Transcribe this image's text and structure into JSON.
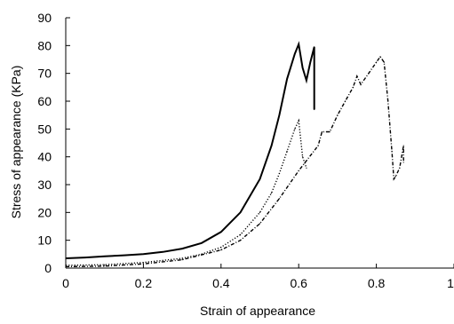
{
  "chart_data": {
    "type": "line",
    "title": "",
    "xlabel": "Strain of appearance",
    "ylabel": "Stress of appearance (KPa)",
    "xlim": [
      0,
      1
    ],
    "ylim": [
      0,
      90
    ],
    "xticks": [
      0,
      0.2,
      0.4,
      0.6,
      0.8,
      1
    ],
    "xtick_labels": [
      "0",
      "0.2",
      "0.4",
      "0.6",
      "0.8",
      "1"
    ],
    "yticks": [
      0,
      10,
      20,
      30,
      40,
      50,
      60,
      70,
      80,
      90
    ],
    "ytick_labels": [
      "0",
      "10",
      "20",
      "30",
      "40",
      "50",
      "60",
      "70",
      "80",
      "90"
    ],
    "grid": false,
    "legend": "none",
    "series": [
      {
        "style": "solid",
        "color": "#000000",
        "x": [
          0,
          0.05,
          0.1,
          0.15,
          0.2,
          0.25,
          0.3,
          0.35,
          0.4,
          0.45,
          0.5,
          0.53,
          0.55,
          0.57,
          0.59,
          0.6,
          0.61,
          0.62,
          0.63,
          0.64,
          0.64,
          0.64
        ],
        "y": [
          3.5,
          3.8,
          4.2,
          4.6,
          5.0,
          5.8,
          7.0,
          9.0,
          13.0,
          20.0,
          32.0,
          44.0,
          55.0,
          68.0,
          77.0,
          80.5,
          72.0,
          67.5,
          74.0,
          79.5,
          65.0,
          57.0
        ]
      },
      {
        "style": "dotted",
        "color": "#000000",
        "x": [
          0,
          0.1,
          0.2,
          0.3,
          0.35,
          0.4,
          0.45,
          0.5,
          0.53,
          0.55,
          0.57,
          0.59,
          0.6,
          0.61,
          0.62
        ],
        "y": [
          1.0,
          1.2,
          2.0,
          3.5,
          5.0,
          7.5,
          12.0,
          20.0,
          27.0,
          34.0,
          42.0,
          50.0,
          53.0,
          40.0,
          36.0
        ]
      },
      {
        "style": "dashdot",
        "color": "#000000",
        "x": [
          0,
          0.1,
          0.2,
          0.3,
          0.4,
          0.45,
          0.5,
          0.55,
          0.6,
          0.65,
          0.66,
          0.68,
          0.7,
          0.72,
          0.74,
          0.75,
          0.76,
          0.78,
          0.8,
          0.81,
          0.82,
          0.83,
          0.84,
          0.845,
          0.85,
          0.86,
          0.87,
          0.87
        ],
        "y": [
          0.5,
          0.7,
          1.5,
          3.0,
          6.5,
          10.0,
          16.0,
          25.0,
          35.0,
          44.0,
          49.0,
          49.0,
          55.0,
          60.0,
          65.0,
          69.0,
          66.0,
          70.0,
          74.0,
          76.0,
          74.0,
          60.0,
          42.0,
          32.0,
          33.0,
          36.0,
          44.0,
          38.0
        ]
      }
    ]
  }
}
